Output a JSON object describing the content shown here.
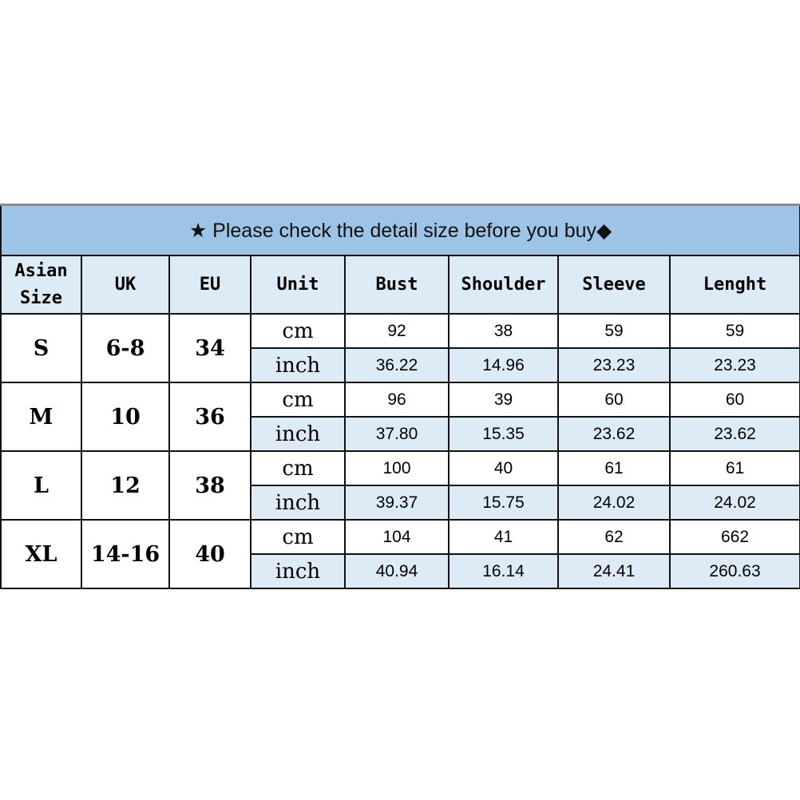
{
  "title": "★ Please check the detail size before you buy◆",
  "headers": [
    "Asian Size",
    "UK",
    "EU",
    "Unit",
    "Bust",
    "Shoulder",
    "Sleeve",
    "Lenght"
  ],
  "units": [
    "cm",
    "inch"
  ],
  "rows": [
    {
      "asian": "S",
      "uk": "6-8",
      "eu": "34",
      "cm": [
        "92",
        "38",
        "59",
        "59"
      ],
      "inch": [
        "36.22",
        "14.96",
        "23.23",
        "23.23"
      ]
    },
    {
      "asian": "M",
      "uk": "10",
      "eu": "36",
      "cm": [
        "96",
        "39",
        "60",
        "60"
      ],
      "inch": [
        "37.80",
        "15.35",
        "23.62",
        "23.62"
      ]
    },
    {
      "asian": "L",
      "uk": "12",
      "eu": "38",
      "cm": [
        "100",
        "40",
        "61",
        "61"
      ],
      "inch": [
        "39.37",
        "15.75",
        "24.02",
        "24.02"
      ]
    },
    {
      "asian": "XL",
      "uk": "14-16",
      "eu": "40",
      "cm": [
        "104",
        "41",
        "62",
        "662"
      ],
      "inch": [
        "40.94",
        "16.14",
        "24.41",
        "260.63"
      ]
    }
  ],
  "colors": {
    "title_bg": "#9dc3e6",
    "header_bg": "#ddebf7",
    "inch_row_bg": "#ddebf7"
  }
}
